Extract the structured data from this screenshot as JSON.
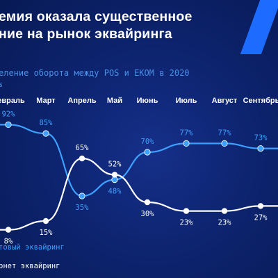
{
  "slide": {
    "title_line1": "емия оказала существенное",
    "title_line2": "ние на рынок эквайринга",
    "subtitle": "еление оборота между POS и ЕКОМ в 2020",
    "subtitle2": "%"
  },
  "colors": {
    "background": "#0a1f5c",
    "accent_stripe": "#1e6cff",
    "pos_line": "#3ea0ff",
    "ecom_line": "#ffffff"
  },
  "chart_data": {
    "type": "line",
    "categories": [
      "евраль",
      "Март",
      "Апрель",
      "Май",
      "Июнь",
      "Июль",
      "Август",
      "Сентябрь"
    ],
    "series": [
      {
        "name": "товый эквайринг",
        "values": [
          92,
          85,
          35,
          48,
          70,
          77,
          77,
          73
        ],
        "labels": [
          "92%",
          "85%",
          "35%",
          "48%",
          "70%",
          "77%",
          "77%",
          "73%"
        ]
      },
      {
        "name": "рнет эквайринг",
        "values": [
          8,
          15,
          65,
          52,
          30,
          23,
          23,
          27
        ],
        "labels": [
          "8%",
          "15%",
          "65%",
          "52%",
          "30%",
          "23%",
          "23%",
          "27%"
        ]
      }
    ],
    "xlabel": "",
    "ylabel": "",
    "ylim": [
      0,
      100
    ],
    "grid": false,
    "legend": "bottom-left"
  }
}
